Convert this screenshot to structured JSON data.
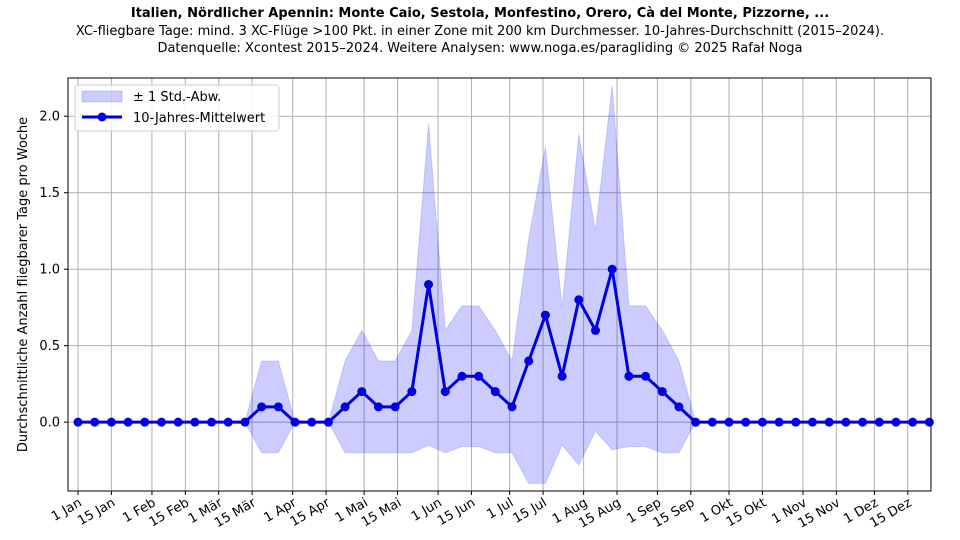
{
  "chart_data": {
    "type": "line",
    "title": "Italien, Nördlicher Apennin: Monte Caio, Sestola, Monfestino, Orero, Cà del Monte, Pizzorne, ...",
    "subtitle_lines": [
      "XC-fliegbare Tage: mind. 3 XC-Flüge >100 Pkt. in einer Zone mit 200 km Durchmesser. 10-Jahres-Durchschnitt (2015–2024).",
      "Datenquelle: Xcontest 2015–2024. Weitere Analysen: www.noga.es/paragliding © 2025 Rafał Noga"
    ],
    "ylabel": "Durchschnittliche Anzahl fliegbarer Tage pro Woche",
    "xlabel": "",
    "x_unit": "week",
    "x_tick_labels": [
      "1 Jan",
      "15 Jan",
      "1 Feb",
      "15 Feb",
      "1 Mär",
      "15 Mär",
      "1 Apr",
      "15 Apr",
      "1 Mai",
      "15 Mai",
      "1 Jun",
      "15 Jun",
      "1 Jul",
      "15 Jul",
      "1 Aug",
      "15 Aug",
      "1 Sep",
      "15 Sep",
      "1 Okt",
      "15 Okt",
      "1 Nov",
      "15 Nov",
      "1 Dez",
      "15 Dez"
    ],
    "x_tick_positions": [
      0,
      2,
      4.43,
      6.43,
      8.43,
      10.43,
      12.86,
      14.86,
      17.14,
      19.14,
      21.57,
      23.57,
      25.86,
      27.86,
      30.29,
      32.29,
      34.71,
      36.71,
      39,
      41,
      43.43,
      45.43,
      47.71,
      49.71
    ],
    "ylim": [
      -0.45,
      2.25
    ],
    "y_ticks": [
      0.0,
      0.5,
      1.0,
      1.5,
      2.0
    ],
    "y_tick_labels": [
      "0.0",
      "0.5",
      "1.0",
      "1.5",
      "2.0"
    ],
    "grid": true,
    "legend_position": "top-left",
    "series": [
      {
        "name": "10-Jahres-Mittelwert",
        "color": "#0000e0",
        "x": [
          0,
          1,
          2,
          3,
          4,
          5,
          6,
          7,
          8,
          9,
          10,
          11,
          12,
          13,
          14,
          15,
          16,
          17,
          18,
          19,
          20,
          21,
          22,
          23,
          24,
          25,
          26,
          27,
          28,
          29,
          30,
          31,
          32,
          33,
          34,
          35,
          36,
          37,
          38,
          39,
          40,
          41,
          42,
          43,
          44,
          45,
          46,
          47,
          48,
          49,
          50,
          51
        ],
        "values": [
          0,
          0,
          0,
          0,
          0,
          0,
          0,
          0,
          0,
          0,
          0,
          0.1,
          0.1,
          0,
          0,
          0,
          0.1,
          0.2,
          0.1,
          0.1,
          0.2,
          0.9,
          0.2,
          0.3,
          0.3,
          0.2,
          0.1,
          0.4,
          0.7,
          0.3,
          0.8,
          0.6,
          1.0,
          0.3,
          0.3,
          0.2,
          0.1,
          0,
          0,
          0,
          0,
          0,
          0,
          0,
          0,
          0,
          0,
          0,
          0,
          0,
          0,
          0
        ]
      }
    ],
    "band": {
      "name": "± 1 Std.-Abw.",
      "color": "#aaaaf5",
      "upper": [
        0,
        0,
        0,
        0,
        0,
        0,
        0,
        0,
        0,
        0,
        0,
        0.4,
        0.4,
        0,
        0,
        0,
        0.4,
        0.6,
        0.4,
        0.4,
        0.6,
        1.95,
        0.6,
        0.76,
        0.76,
        0.6,
        0.4,
        1.2,
        1.8,
        0.75,
        1.88,
        1.25,
        2.2,
        0.76,
        0.76,
        0.6,
        0.4,
        0,
        0,
        0,
        0,
        0,
        0,
        0,
        0,
        0,
        0,
        0,
        0,
        0,
        0,
        0
      ],
      "lower": [
        0,
        0,
        0,
        0,
        0,
        0,
        0,
        0,
        0,
        0,
        0,
        -0.2,
        -0.2,
        0,
        0,
        0,
        -0.2,
        -0.2,
        -0.2,
        -0.2,
        -0.2,
        -0.15,
        -0.2,
        -0.16,
        -0.16,
        -0.2,
        -0.2,
        -0.4,
        -0.4,
        -0.15,
        -0.28,
        -0.06,
        -0.18,
        -0.16,
        -0.16,
        -0.2,
        -0.2,
        0,
        0,
        0,
        0,
        0,
        0,
        0,
        0,
        0,
        0,
        0,
        0,
        0,
        0,
        0
      ]
    }
  }
}
